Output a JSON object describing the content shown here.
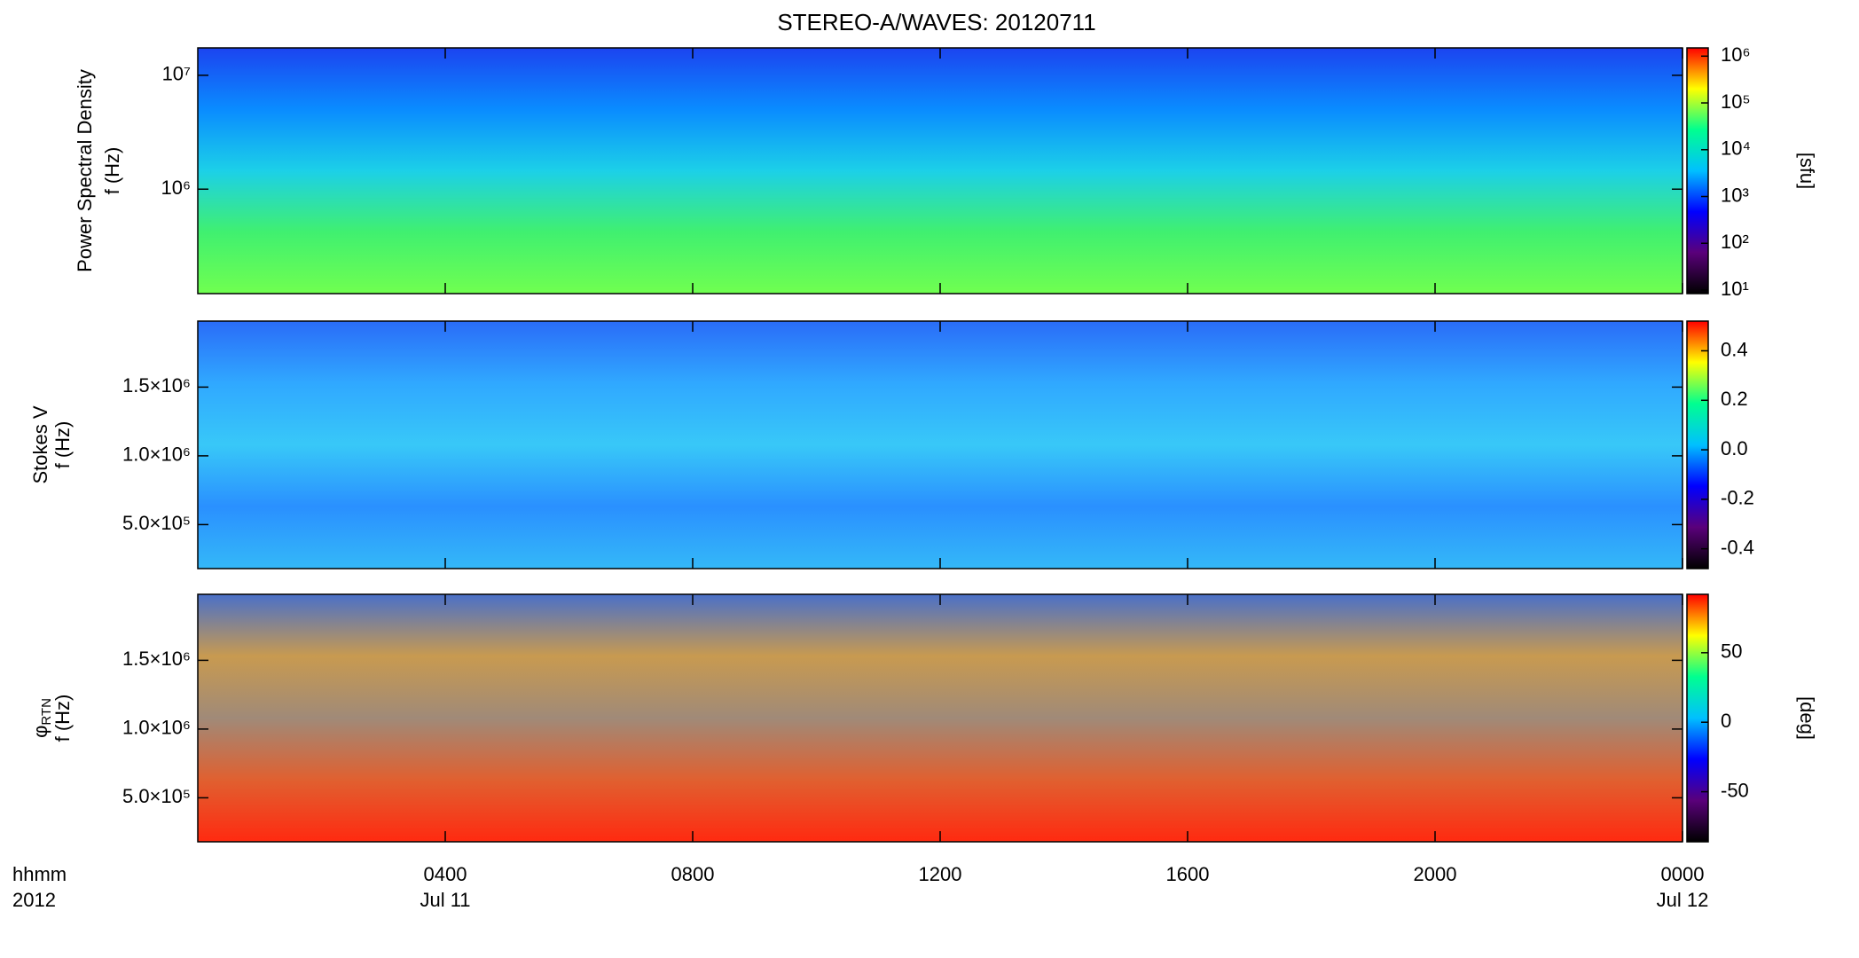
{
  "chart_data": [
    {
      "type": "heatmap",
      "title": "STEREO-A/WAVES: 20120711",
      "ylabel": [
        "Power Spectral Density",
        "f (Hz)"
      ],
      "ylog": true,
      "ylim": [
        121000,
        17400000
      ],
      "yticks": [
        {
          "value": 1000000,
          "label": "10⁶"
        },
        {
          "value": 10000000,
          "label": "10⁷"
        }
      ],
      "xlim": [
        0,
        24
      ],
      "colorbar": {
        "log": true,
        "lim": [
          8.4,
          1500000
        ],
        "label": "[sfu]",
        "ticks": [
          {
            "value": 10,
            "label": "10¹"
          },
          {
            "value": 100,
            "label": "10²"
          },
          {
            "value": 1000,
            "label": "10³"
          },
          {
            "value": 10000,
            "label": "10⁴"
          },
          {
            "value": 100000,
            "label": "10⁵"
          },
          {
            "value": 1000000,
            "label": "10⁶"
          }
        ]
      },
      "colormap": [
        "#000000",
        "#5a007a",
        "#0000ff",
        "#00c0ff",
        "#00ff90",
        "#ffff00",
        "#ff0000"
      ],
      "background": [
        "#1c44f0",
        "#0a8cff",
        "#1cd0e8",
        "#40f070",
        "#70ff50"
      ]
    },
    {
      "type": "heatmap",
      "ylabel": [
        "Stokes V",
        "f (Hz)"
      ],
      "ylog": false,
      "ylim": [
        180000,
        1980000
      ],
      "yticks": [
        {
          "value": 500000,
          "label": "5.0×10⁵"
        },
        {
          "value": 1000000,
          "label": "1.0×10⁶"
        },
        {
          "value": 1500000,
          "label": "1.5×10⁶"
        }
      ],
      "xlim": [
        0,
        24
      ],
      "colorbar": {
        "log": false,
        "lim": [
          -0.48,
          0.52
        ],
        "label": null,
        "ticks": [
          -0.4,
          -0.2,
          {
            "value": 0,
            "label": "0.0"
          },
          0.2,
          0.4
        ]
      },
      "colormap": [
        "#000000",
        "#5a007a",
        "#0000ff",
        "#00c0ff",
        "#00ff90",
        "#ffff00",
        "#ff0000"
      ],
      "background": [
        "#2a6cf8",
        "#30a8ff",
        "#38c8f8",
        "#2a90ff",
        "#34b8f8"
      ]
    },
    {
      "type": "heatmap",
      "ylabel_symbol": "φ",
      "ylabel_subscript": "RTN",
      "ylabel": [
        "f (Hz)"
      ],
      "ylog": false,
      "ylim": [
        180000,
        1980000
      ],
      "yticks": [
        {
          "value": 500000,
          "label": "5.0×10⁵"
        },
        {
          "value": 1000000,
          "label": "1.0×10⁶"
        },
        {
          "value": 1500000,
          "label": "1.5×10⁶"
        }
      ],
      "xlim": [
        0,
        24
      ],
      "xticks": [
        {
          "value": 4,
          "label": "0400"
        },
        {
          "value": 8,
          "label": "0800"
        },
        {
          "value": 12,
          "label": "1200"
        },
        {
          "value": 16,
          "label": "1600"
        },
        {
          "value": 20,
          "label": "2000"
        },
        {
          "value": 24,
          "label": "0000"
        }
      ],
      "date_labels": [
        {
          "value": 4,
          "label": "Jul 11"
        },
        {
          "value": 24,
          "label": "Jul 12"
        }
      ],
      "corner_labels": [
        "hhmm",
        "2012"
      ],
      "colorbar": {
        "log": false,
        "lim": [
          -86,
          92
        ],
        "label": "[deg]",
        "ticks": [
          -50,
          0,
          50
        ]
      },
      "colormap": [
        "#000000",
        "#5a007a",
        "#0000ff",
        "#00c0ff",
        "#00ff90",
        "#ffff00",
        "#ff0000"
      ],
      "background": [
        "#4a70c8",
        "#c89a50",
        "#a08a78",
        "#e06030",
        "#ff2a10"
      ]
    }
  ]
}
